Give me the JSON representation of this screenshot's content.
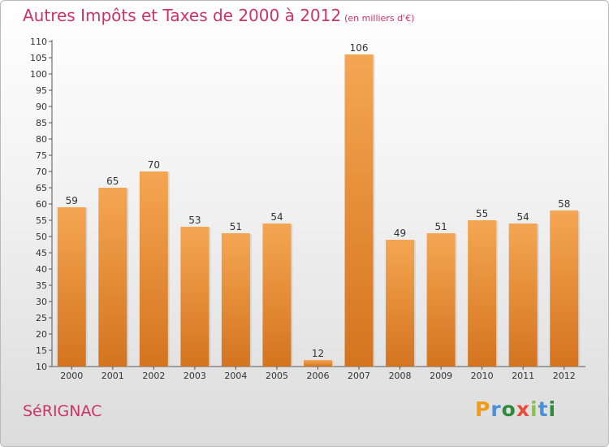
{
  "title": "Autres Impôts et Taxes de 2000 à 2012",
  "subtitle": "(en milliers d'€)",
  "commune": "SéRIGNAC",
  "logo": {
    "letters": [
      "P",
      "r",
      "o",
      "x",
      "i",
      "t",
      "i"
    ],
    "colors": [
      "#f39c12",
      "#4a90d9",
      "#2e8b3e",
      "#e74c3c",
      "#8bc34a",
      "#4a90d9",
      "#2e8b3e"
    ]
  },
  "colors": {
    "bar_top": "#f5a652",
    "bar_bottom": "#d4741f",
    "title": "#cc3366"
  },
  "chart_data": {
    "type": "bar",
    "title": "Autres Impôts et Taxes de 2000 à 2012",
    "subtitle": "(en milliers d'€)",
    "categories": [
      "2000",
      "2001",
      "2002",
      "2003",
      "2004",
      "2005",
      "2006",
      "2007",
      "2008",
      "2009",
      "2010",
      "2011",
      "2012"
    ],
    "values": [
      59,
      65,
      70,
      53,
      51,
      54,
      12,
      106,
      49,
      51,
      55,
      54,
      58
    ],
    "ylim": [
      10,
      110
    ],
    "yticks": [
      10,
      15,
      20,
      25,
      30,
      35,
      40,
      45,
      50,
      55,
      60,
      65,
      70,
      75,
      80,
      85,
      90,
      95,
      100,
      105,
      110
    ],
    "grid": false,
    "xlabel": "",
    "ylabel": ""
  }
}
